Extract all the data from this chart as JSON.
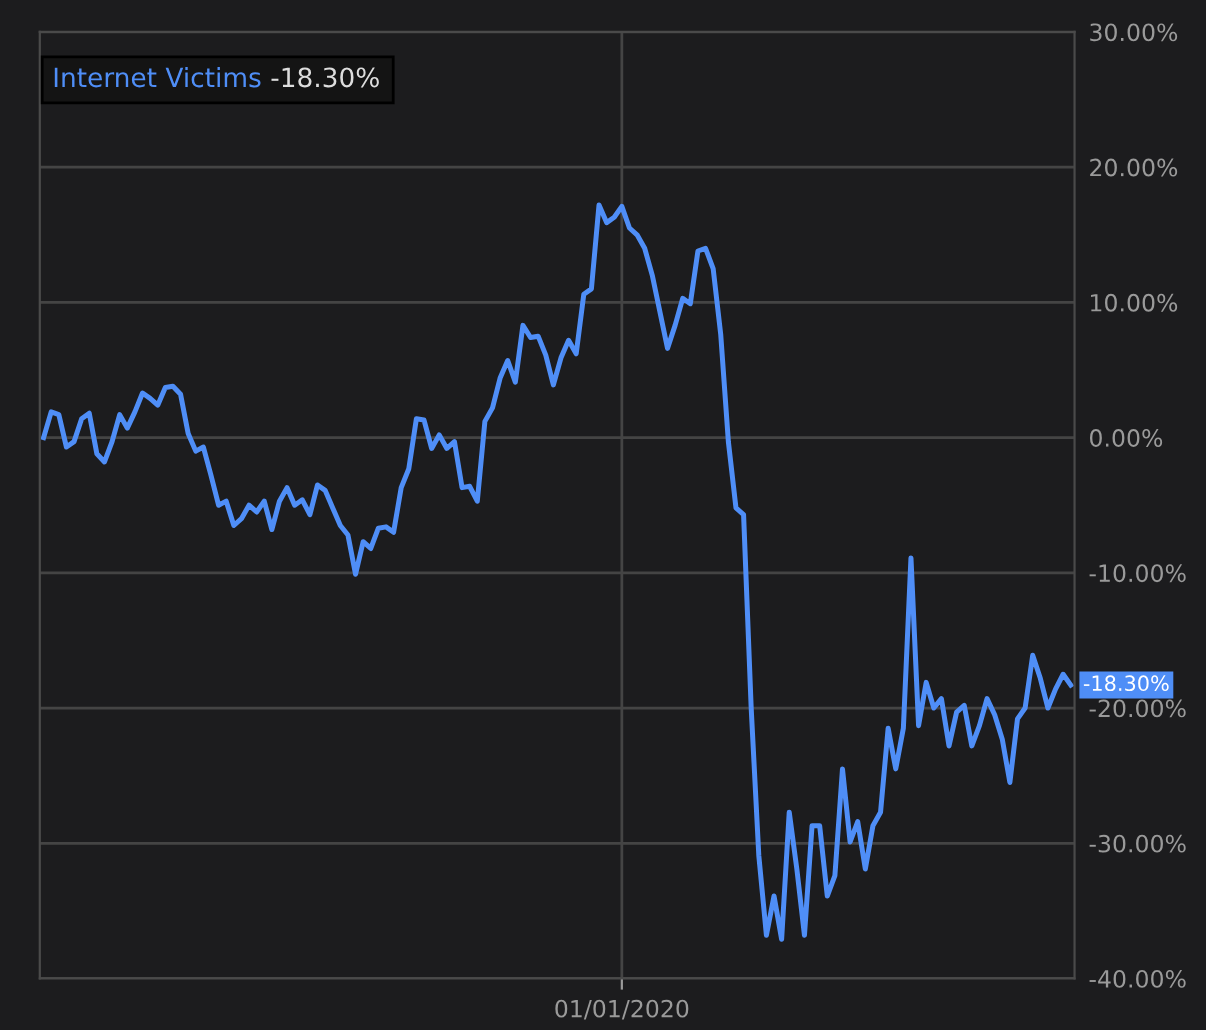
{
  "chart_data": {
    "type": "line",
    "categories": [
      null,
      null,
      null,
      null,
      null,
      null,
      null,
      null,
      null,
      null,
      null,
      null,
      null,
      null,
      null,
      null,
      null,
      null,
      null,
      null,
      null,
      null,
      null,
      null,
      null,
      null,
      null,
      null,
      null,
      null,
      null,
      null,
      null,
      null,
      null,
      null,
      null,
      null,
      null,
      null,
      null,
      null,
      null,
      null,
      null,
      null,
      null,
      null,
      null,
      null,
      null,
      null,
      null,
      null,
      null,
      null,
      null,
      null,
      null,
      null,
      null,
      null,
      null,
      null,
      null,
      null,
      null,
      null,
      null,
      null,
      null,
      null,
      null,
      null,
      null,
      null,
      "01/01/2020",
      null,
      null,
      null,
      null,
      null,
      null,
      null,
      null,
      null,
      null,
      null,
      null,
      null,
      null,
      null,
      null,
      null,
      null,
      null,
      null,
      null,
      null,
      null,
      null,
      null,
      null,
      null,
      null,
      null,
      null,
      null,
      null,
      null,
      null,
      null,
      null,
      null,
      null,
      null,
      null,
      null,
      null,
      null,
      null,
      null,
      null,
      null,
      null,
      null,
      null,
      null,
      null,
      null,
      null,
      null,
      null,
      null,
      null,
      null
    ],
    "series": [
      {
        "name": "Internet Victims",
        "color": "#4f8ef7",
        "values": [
          0,
          1.9,
          1.7,
          -0.7,
          -0.3,
          1.4,
          1.8,
          -1.2,
          -1.8,
          -0.3,
          1.7,
          0.7,
          1.9,
          3.3,
          2.9,
          2.4,
          3.7,
          3.8,
          3.2,
          0.3,
          -1.0,
          -0.7,
          -2.8,
          -5.0,
          -4.7,
          -6.5,
          -6.0,
          -5.0,
          -5.5,
          -4.7,
          -6.8,
          -4.7,
          -3.7,
          -5.0,
          -4.6,
          -5.7,
          -3.5,
          -3.9,
          -5.2,
          -6.5,
          -7.2,
          -10.1,
          -7.7,
          -8.2,
          -6.7,
          -6.6,
          -7.0,
          -3.7,
          -2.3,
          1.4,
          1.3,
          -0.8,
          0.2,
          -0.8,
          -0.3,
          -3.7,
          -3.6,
          -4.7,
          1.2,
          2.2,
          4.4,
          5.7,
          4.1,
          8.3,
          7.4,
          7.5,
          6.1,
          3.9,
          5.9,
          7.2,
          6.2,
          10.6,
          11.0,
          17.2,
          15.9,
          16.3,
          17.1,
          15.5,
          15.0,
          14.0,
          12.0,
          9.3,
          6.6,
          8.3,
          10.3,
          9.9,
          13.8,
          14.0,
          12.5,
          7.6,
          -0.3,
          -5.2,
          -5.7,
          -20.0,
          -30.9,
          -36.8,
          -33.9,
          -37.1,
          -27.7,
          -31.9,
          -36.8,
          -28.7,
          -28.7,
          -33.9,
          -32.4,
          -24.5,
          -29.9,
          -28.4,
          -31.9,
          -28.7,
          -27.7,
          -21.5,
          -24.5,
          -21.5,
          -8.9,
          -21.3,
          -18.1,
          -20.0,
          -19.3,
          -22.8,
          -20.3,
          -19.8,
          -22.8,
          -21.3,
          -19.3,
          -20.5,
          -22.3,
          -25.5,
          -20.8,
          -20.0,
          -16.1,
          -17.8,
          -20.0,
          -18.6,
          -17.5,
          -18.3
        ]
      }
    ],
    "ylim": [
      -40,
      30
    ],
    "yticks": [
      {
        "value": 30,
        "label": "30.00%"
      },
      {
        "value": 20,
        "label": "20.00%"
      },
      {
        "value": 10,
        "label": "10.00%"
      },
      {
        "value": 0,
        "label": "0.00%"
      },
      {
        "value": -10,
        "label": "-10.00%"
      },
      {
        "value": -20,
        "label": "-20.00%"
      },
      {
        "value": -30,
        "label": "-30.00%"
      },
      {
        "value": -40,
        "label": "-40.00%"
      }
    ],
    "grid": true,
    "legend": "top left",
    "annotations": [
      "-18.30%",
      "-18.30%"
    ]
  }
}
